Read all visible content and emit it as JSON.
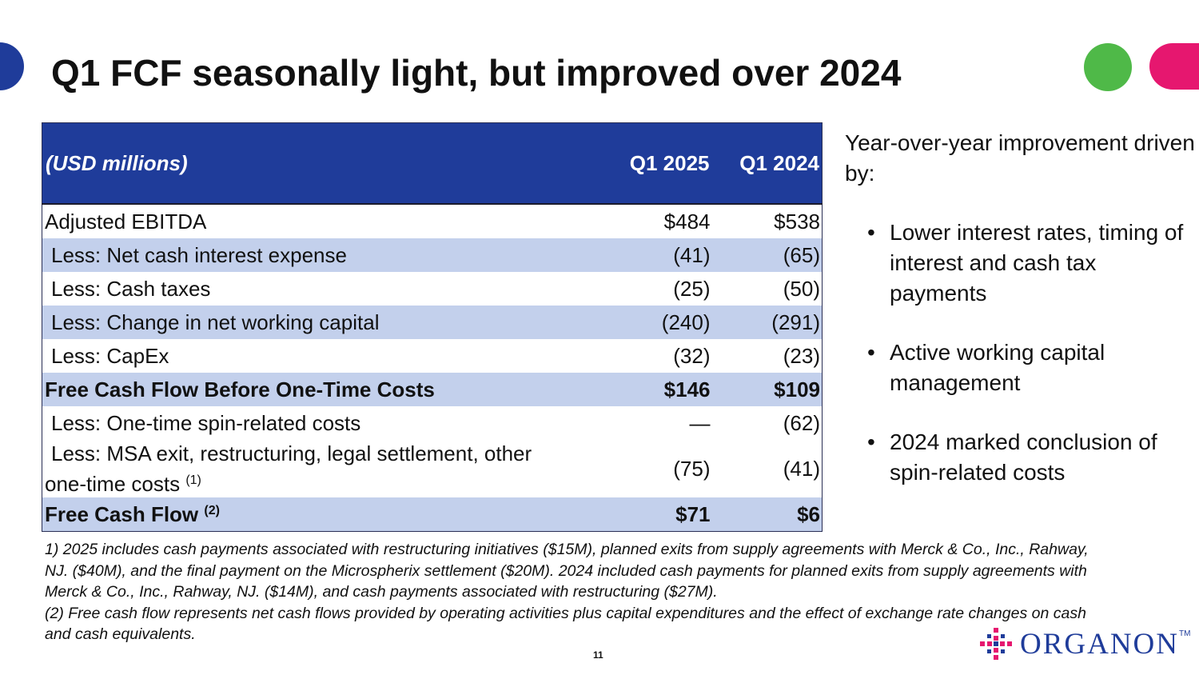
{
  "title": "Q1 FCF seasonally light, but improved over 2024",
  "table": {
    "header": {
      "label": "(USD millions)",
      "col1": "Q1 2025",
      "col2": "Q1 2024"
    },
    "rows": [
      {
        "label": "Adjusted EBITDA",
        "sup": "",
        "q1_2025": "$484",
        "q1_2024": "$538"
      },
      {
        "label": "Less: Net cash interest expense",
        "sup": "",
        "q1_2025": "(41)",
        "q1_2024": "(65)"
      },
      {
        "label": "Less: Cash taxes",
        "sup": "",
        "q1_2025": "(25)",
        "q1_2024": "(50)"
      },
      {
        "label": "Less: Change in net working capital",
        "sup": "",
        "q1_2025": "(240)",
        "q1_2024": "(291)"
      },
      {
        "label": "Less: CapEx",
        "sup": "",
        "q1_2025": "(32)",
        "q1_2024": "(23)"
      },
      {
        "label": "Free Cash Flow Before One-Time Costs",
        "sup": "",
        "q1_2025": "$146",
        "q1_2024": "$109"
      },
      {
        "label": "Less: One-time spin-related costs",
        "sup": "",
        "q1_2025": "—",
        "q1_2024": "(62)"
      },
      {
        "label_line1": "Less: MSA exit, restructuring, legal settlement, other",
        "label_line2": "one-time costs",
        "sup": "(1)",
        "q1_2025": "(75)",
        "q1_2024": "(41)"
      },
      {
        "label": "Free Cash Flow",
        "sup": "(2)",
        "q1_2025": "$71",
        "q1_2024": "$6"
      }
    ]
  },
  "sidebar": {
    "intro": "Year-over-year improvement driven by:",
    "bullet_char": "•",
    "bullets": [
      "Lower interest rates, timing of interest and cash tax payments",
      "Active working capital management",
      "2024 marked conclusion of spin-related costs"
    ]
  },
  "footnotes": {
    "note1": "1) 2025 includes cash payments associated with restructuring initiatives ($15M), planned exits from supply agreements with Merck & Co., Inc., Rahway, NJ. ($40M), and the final payment on the Microspherix settlement ($20M). 2024 included cash payments for planned exits from supply agreements with Merck & Co., Inc., Rahway, NJ. ($14M), and cash payments associated with restructuring ($27M).",
    "note2": "(2) Free cash flow represents net cash flows provided by operating activities plus capital expenditures and the effect of exchange rate changes on cash and cash equivalents."
  },
  "page_number": "11",
  "logo": {
    "text": "ORGANON",
    "tm": "TM",
    "icon": "organon-logo-icon"
  },
  "colors": {
    "brand_blue": "#1f3c9a",
    "row_shade": "#c3d0ec",
    "accent_green": "#4fb948",
    "accent_pink": "#e6176f"
  }
}
